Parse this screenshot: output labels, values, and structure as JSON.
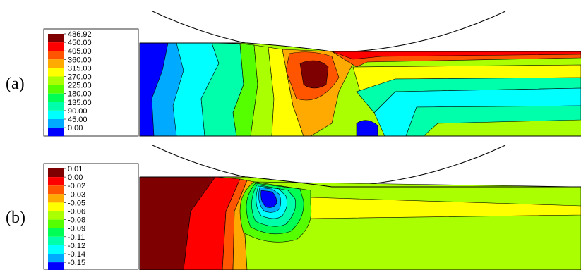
{
  "panels": [
    {
      "label": "(a)",
      "legend": [
        "486.92",
        "450.00",
        "405.00",
        "360.00",
        "315.00",
        "270.00",
        "225.00",
        "180.00",
        "135.00",
        "90.00",
        "45.00",
        "0.00"
      ]
    },
    {
      "label": "(b)",
      "legend": [
        "0.01",
        "0.00",
        "-0.02",
        "-0.03",
        "-0.05",
        "-0.06",
        "-0.08",
        "-0.09",
        "-0.11",
        "-0.12",
        "-0.14",
        "-0.15"
      ]
    }
  ],
  "colors": {
    "legend_swatches": [
      "#7f0000",
      "#ff0000",
      "#ff5500",
      "#ffaa00",
      "#ffff00",
      "#aaff00",
      "#55ff00",
      "#00ff55",
      "#00ffaa",
      "#00ffff",
      "#00aaff",
      "#0000ff"
    ],
    "outline": "#000000"
  }
}
